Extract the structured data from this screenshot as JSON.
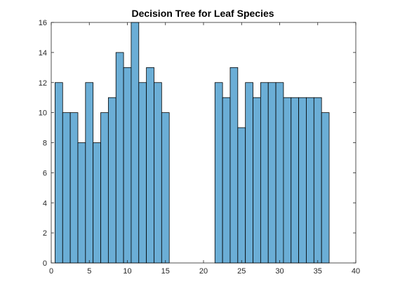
{
  "chart_data": {
    "type": "bar",
    "title": "Decision Tree for Leaf Species",
    "xlabel": "",
    "ylabel": "",
    "xlim": [
      0,
      40
    ],
    "ylim": [
      0,
      16
    ],
    "xticks": [
      0,
      5,
      10,
      15,
      20,
      25,
      30,
      35,
      40
    ],
    "yticks": [
      0,
      2,
      4,
      6,
      8,
      10,
      12,
      14,
      16
    ],
    "grid": false,
    "bin_width": 1,
    "bin_centers": [
      1,
      2,
      3,
      4,
      5,
      6,
      7,
      8,
      9,
      10,
      11,
      12,
      13,
      14,
      15,
      22,
      23,
      24,
      25,
      26,
      27,
      28,
      29,
      30,
      31,
      32,
      33,
      34,
      35,
      36
    ],
    "values": [
      12,
      10,
      10,
      8,
      12,
      8,
      10,
      11,
      14,
      13,
      16,
      12,
      13,
      12,
      10,
      12,
      11,
      13,
      9,
      12,
      11,
      12,
      12,
      12,
      11,
      11,
      11,
      11,
      11,
      10
    ],
    "bar_color": "#6BAED6",
    "edge_color": "#000000"
  }
}
